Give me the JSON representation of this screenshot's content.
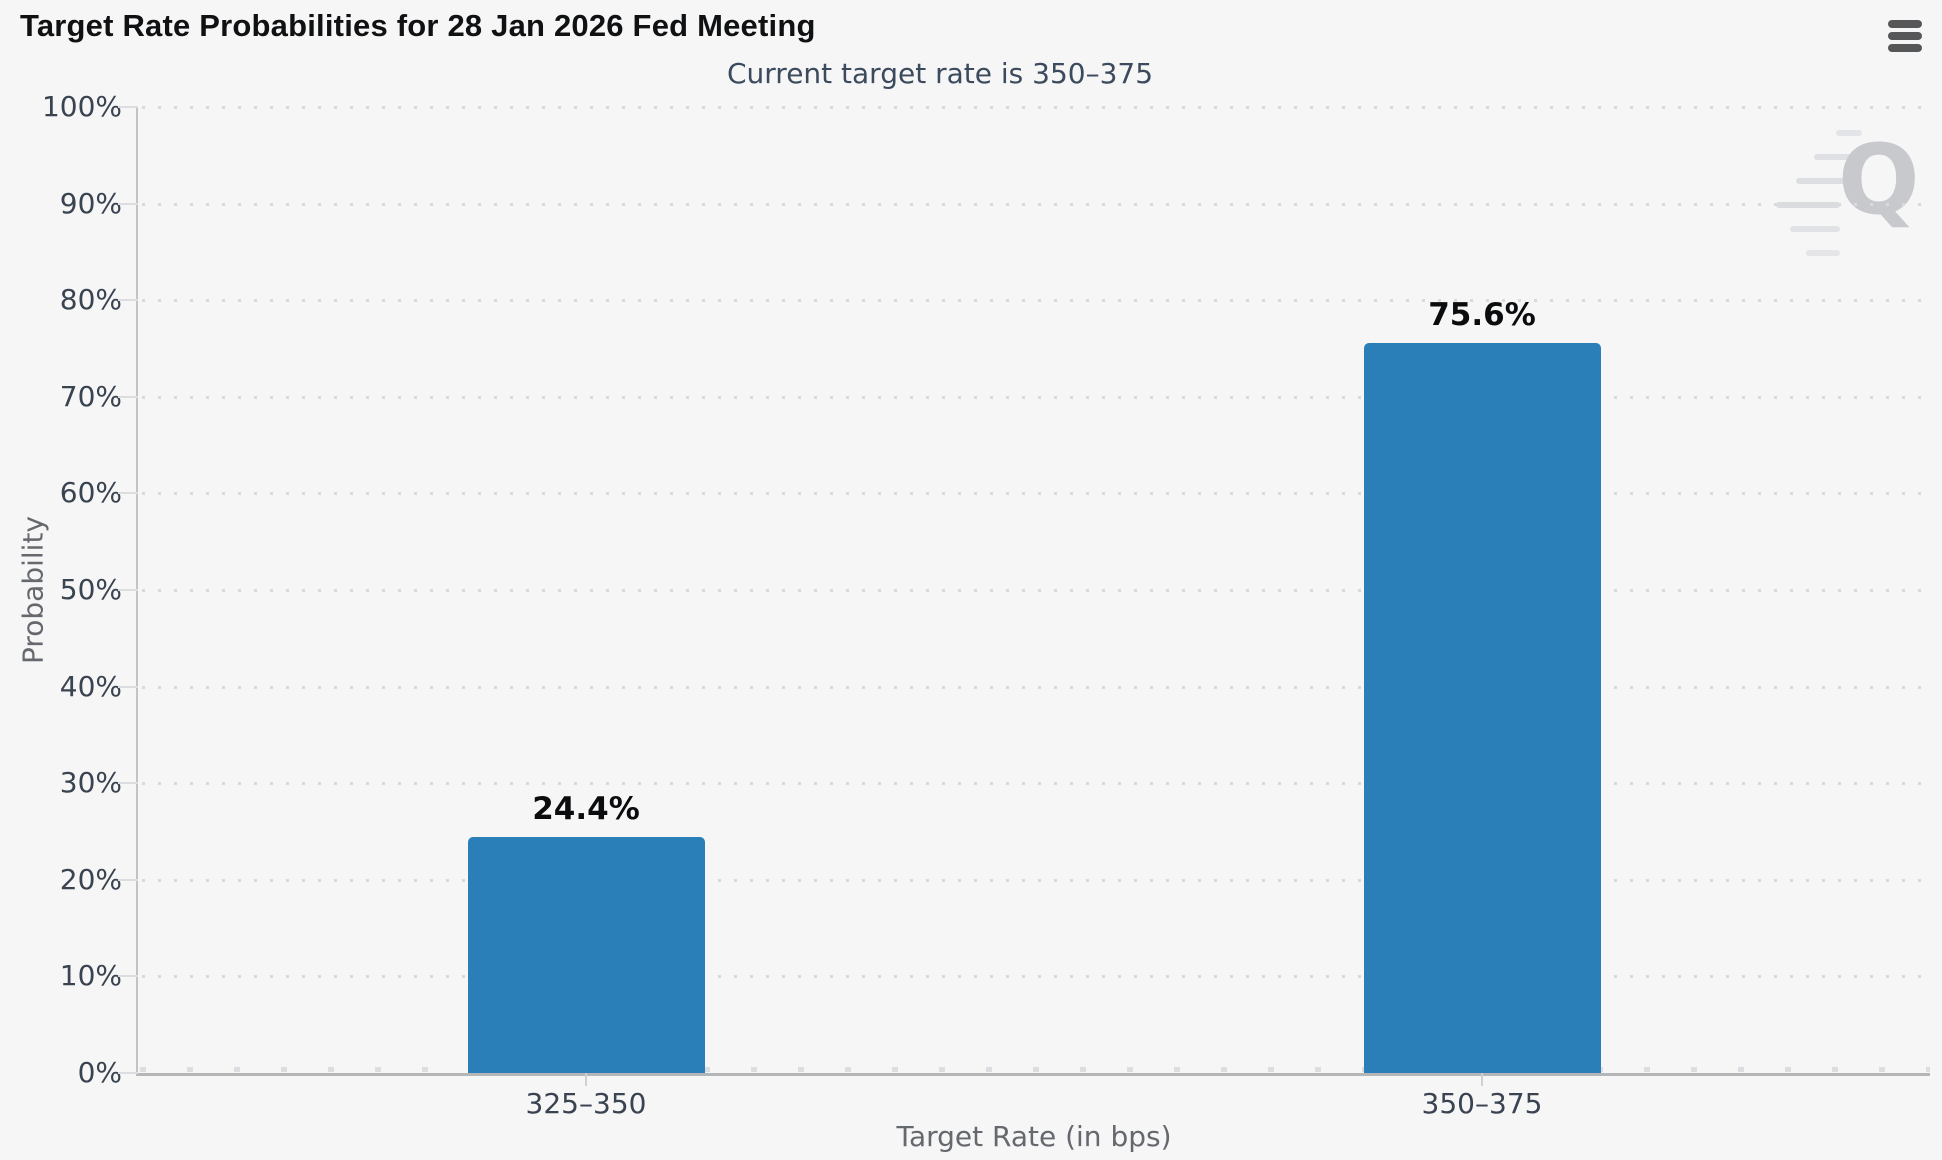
{
  "chart_data": {
    "type": "bar",
    "title": "Target Rate Probabilities for 28 Jan 2026 Fed Meeting",
    "subtitle": "Current target rate is 350–375",
    "xlabel": "Target Rate (in bps)",
    "ylabel": "Probability",
    "categories": [
      "325–350",
      "350–375"
    ],
    "values": [
      24.4,
      75.6
    ],
    "value_labels": [
      "24.4%",
      "75.6%"
    ],
    "ylim": [
      0,
      100
    ],
    "ytick_step": 10,
    "ytick_suffix": "%",
    "grid": "horizontal-dotted",
    "legend_position": "none",
    "bar_color": "#2a7fb8",
    "watermark_letter": "Q"
  },
  "colors": {
    "background": "#f6f6f7",
    "bar": "#2a7fb8",
    "title_text": "#101113",
    "subtitle_text": "#3c4a5e",
    "tick_text": "#3a4350",
    "axis_title_text": "#65686d",
    "axis_line": "#b5b6b8",
    "gridline_dots": "#d9dadc",
    "watermark": "#c8c9cd",
    "menu_icon": "#565759"
  },
  "icons": {
    "menu": "hamburger-icon"
  }
}
